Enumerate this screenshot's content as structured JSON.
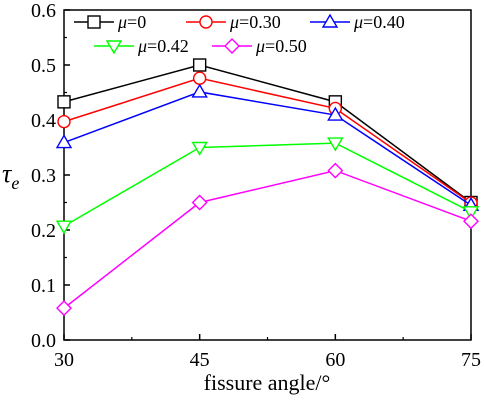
{
  "chart_data": {
    "type": "line",
    "x": [
      30,
      45,
      60,
      75
    ],
    "xlim": [
      30,
      75
    ],
    "ylim": [
      0.0,
      0.6
    ],
    "x_ticks": [
      "30",
      "45",
      "60",
      "75"
    ],
    "y_ticks": [
      "0.0",
      "0.1",
      "0.2",
      "0.3",
      "0.4",
      "0.5",
      "0.6"
    ],
    "xlabel": "fissure angle/°",
    "ylabel": "τ",
    "ylabel_sub": "e",
    "grid": false,
    "legend_position": "top-left",
    "series": [
      {
        "name": "μ=0",
        "mu_symbol": "μ",
        "mu_value": "=0",
        "color": "#000000",
        "marker": "square",
        "values": [
          0.433,
          0.5,
          0.433,
          0.25
        ]
      },
      {
        "name": "μ=0.30",
        "mu_symbol": "μ",
        "mu_value": "=0.30",
        "color": "#ff0000",
        "marker": "circle",
        "values": [
          0.397,
          0.476,
          0.421,
          0.249
        ]
      },
      {
        "name": "μ=0.40",
        "mu_symbol": "μ",
        "mu_value": "=0.40",
        "color": "#0000ff",
        "marker": "triangle-up",
        "values": [
          0.359,
          0.451,
          0.409,
          0.245
        ]
      },
      {
        "name": "μ=0.42",
        "mu_symbol": "μ",
        "mu_value": "=0.42",
        "color": "#00ff00",
        "marker": "triangle-down",
        "values": [
          0.207,
          0.35,
          0.358,
          0.233
        ]
      },
      {
        "name": "μ=0.50",
        "mu_symbol": "μ",
        "mu_value": "=0.50",
        "color": "#ff00ff",
        "marker": "diamond",
        "values": [
          0.058,
          0.25,
          0.308,
          0.216
        ]
      }
    ]
  }
}
